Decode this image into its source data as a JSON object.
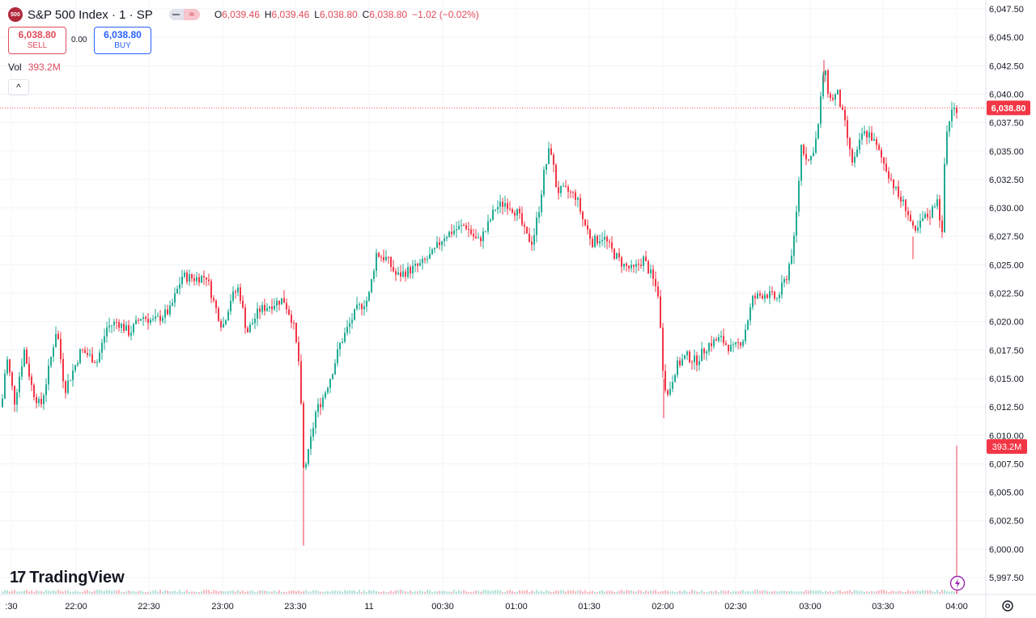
{
  "header": {
    "symbol_badge": "500",
    "title": "S&P 500 Index · 1 · SP",
    "ohlc": [
      {
        "label": "O",
        "value": "6,039.46"
      },
      {
        "label": "H",
        "value": "6,039.46"
      },
      {
        "label": "L",
        "value": "6,038.80"
      },
      {
        "label": "C",
        "value": "6,038.80"
      }
    ],
    "change": "−1.02 (−0.02%)"
  },
  "trade": {
    "sell_price": "6,038.80",
    "sell_label": "SELL",
    "spread": "0.00",
    "buy_price": "6,038.80",
    "buy_label": "BUY"
  },
  "volume": {
    "label": "Vol",
    "value": "393.2M"
  },
  "collapse_icon": "chevron-up-icon",
  "brand": {
    "mark": "17",
    "name": "TradingView"
  },
  "colors": {
    "up": "#22ab94",
    "down": "#f23645",
    "last_price_bg": "#f23645",
    "volume_bg": "#f23645"
  },
  "chart_data": {
    "type": "candlestick",
    "y_ticks": [
      "6,047.50",
      "6,045.00",
      "6,042.50",
      "6,040.00",
      "6,037.50",
      "6,035.00",
      "6,032.50",
      "6,030.00",
      "6,027.50",
      "6,025.00",
      "6,022.50",
      "6,020.00",
      "6,017.50",
      "6,015.00",
      "6,012.50",
      "6,010.00",
      "6,007.50",
      "6,005.00",
      "6,002.50",
      "6,000.00",
      "5,997.50"
    ],
    "ylim": [
      5997.0,
      6048.0
    ],
    "x_ticks": [
      ":30",
      "22:00",
      "22:30",
      "23:00",
      "23:30",
      "11",
      "00:30",
      "01:00",
      "01:30",
      "02:00",
      "02:30",
      "03:00",
      "03:30",
      "04:00"
    ],
    "last_price": 6038.8,
    "last_price_label": "6,038.80",
    "last_volume_label": "393.2M",
    "path": [
      [
        0,
        6011.0
      ],
      [
        8,
        6017.0
      ],
      [
        18,
        6013.0
      ],
      [
        30,
        6017.5
      ],
      [
        40,
        6014.0
      ],
      [
        50,
        6012.5
      ],
      [
        58,
        6015.0
      ],
      [
        70,
        6019.5
      ],
      [
        80,
        6014.0
      ],
      [
        92,
        6016.0
      ],
      [
        100,
        6017.5
      ],
      [
        110,
        6017.0
      ],
      [
        120,
        6016.5
      ],
      [
        132,
        6019.5
      ],
      [
        145,
        6020.0
      ],
      [
        160,
        6019.0
      ],
      [
        175,
        6020.5
      ],
      [
        190,
        6020.0
      ],
      [
        210,
        6021.0
      ],
      [
        225,
        6024.0
      ],
      [
        240,
        6023.8
      ],
      [
        255,
        6024.0
      ],
      [
        265,
        6021.5
      ],
      [
        275,
        6019.5
      ],
      [
        285,
        6022.0
      ],
      [
        295,
        6023.0
      ],
      [
        305,
        6019.0
      ],
      [
        320,
        6021.0
      ],
      [
        335,
        6021.5
      ],
      [
        350,
        6022.0
      ],
      [
        362,
        6020.0
      ],
      [
        370,
        6016.0
      ],
      [
        375,
        6007.0
      ],
      [
        380,
        6008.0
      ],
      [
        390,
        6012.0
      ],
      [
        400,
        6013.5
      ],
      [
        410,
        6015.5
      ],
      [
        420,
        6018.0
      ],
      [
        430,
        6019.5
      ],
      [
        440,
        6021.0
      ],
      [
        455,
        6022.0
      ],
      [
        465,
        6026.0
      ],
      [
        478,
        6025.5
      ],
      [
        490,
        6024.0
      ],
      [
        505,
        6024.5
      ],
      [
        520,
        6025.0
      ],
      [
        535,
        6026.0
      ],
      [
        548,
        6027.5
      ],
      [
        560,
        6028.0
      ],
      [
        575,
        6028.5
      ],
      [
        590,
        6027.0
      ],
      [
        600,
        6028.0
      ],
      [
        612,
        6030.0
      ],
      [
        625,
        6030.5
      ],
      [
        640,
        6029.5
      ],
      [
        650,
        6027.5
      ],
      [
        658,
        6027.0
      ],
      [
        666,
        6030.0
      ],
      [
        672,
        6033.0
      ],
      [
        680,
        6035.5
      ],
      [
        688,
        6031.5
      ],
      [
        700,
        6031.5
      ],
      [
        712,
        6031.0
      ],
      [
        720,
        6029.0
      ],
      [
        732,
        6027.0
      ],
      [
        745,
        6027.5
      ],
      [
        758,
        6026.0
      ],
      [
        770,
        6025.0
      ],
      [
        782,
        6024.5
      ],
      [
        795,
        6025.5
      ],
      [
        805,
        6024.0
      ],
      [
        813,
        6022.5
      ],
      [
        820,
        6015.0
      ],
      [
        825,
        6013.5
      ],
      [
        835,
        6016.0
      ],
      [
        848,
        6017.0
      ],
      [
        860,
        6016.5
      ],
      [
        875,
        6018.0
      ],
      [
        890,
        6018.5
      ],
      [
        905,
        6017.5
      ],
      [
        918,
        6018.5
      ],
      [
        930,
        6022.0
      ],
      [
        945,
        6022.5
      ],
      [
        960,
        6022.0
      ],
      [
        972,
        6024.0
      ],
      [
        982,
        6027.5
      ],
      [
        990,
        6035.5
      ],
      [
        1000,
        6034.0
      ],
      [
        1010,
        6036.5
      ],
      [
        1018,
        6042.5
      ],
      [
        1025,
        6039.5
      ],
      [
        1035,
        6040.0
      ],
      [
        1045,
        6037.0
      ],
      [
        1052,
        6034.0
      ],
      [
        1058,
        6034.5
      ],
      [
        1065,
        6036.5
      ],
      [
        1075,
        6036.5
      ],
      [
        1085,
        6035.0
      ],
      [
        1098,
        6033.0
      ],
      [
        1110,
        6031.0
      ],
      [
        1120,
        6030.0
      ],
      [
        1130,
        6027.5
      ],
      [
        1140,
        6029.0
      ],
      [
        1150,
        6029.5
      ],
      [
        1158,
        6031.0
      ],
      [
        1164,
        6027.5
      ],
      [
        1168,
        6036.0
      ],
      [
        1175,
        6038.5
      ],
      [
        1182,
        6038.8
      ]
    ],
    "volume_path": [
      [
        0,
        0.4
      ],
      [
        300,
        0.5
      ],
      [
        600,
        0.45
      ],
      [
        900,
        0.5
      ],
      [
        1100,
        0.6
      ],
      [
        1170,
        3.0
      ],
      [
        1182,
        40.0
      ]
    ]
  }
}
